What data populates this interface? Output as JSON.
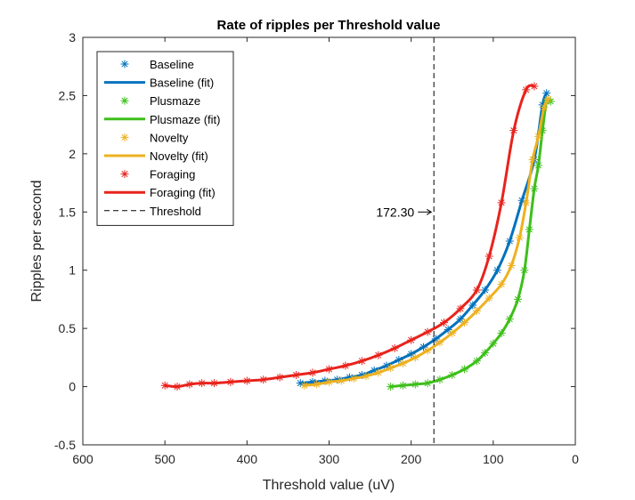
{
  "chart_data": {
    "type": "line",
    "title": "Rate of ripples per Threshold value",
    "xlabel": "Threshold value (uV)",
    "ylabel": "Ripples per second",
    "xlim": [
      0,
      600
    ],
    "x_reversed": true,
    "ylim": [
      -0.5,
      3
    ],
    "xticks": [
      "600",
      "500",
      "400",
      "300",
      "200",
      "100",
      "0"
    ],
    "xtick_values": [
      600,
      500,
      400,
      300,
      200,
      100,
      0
    ],
    "yticks": [
      "-0.5",
      "0",
      "0.5",
      "1",
      "1.5",
      "2",
      "2.5",
      "3"
    ],
    "ytick_values": [
      -0.5,
      0,
      0.5,
      1,
      1.5,
      2,
      2.5,
      3
    ],
    "grid": false,
    "legend_position": "top-left",
    "threshold": {
      "label": "Threshold",
      "value": 172.3,
      "annotation": "172.30"
    },
    "series": [
      {
        "name": "Baseline",
        "fit_name": "Baseline (fit)",
        "color": "#0072BD",
        "x": [
          335,
          320,
          305,
          290,
          275,
          260,
          245,
          230,
          215,
          200,
          185,
          170,
          155,
          140,
          125,
          110,
          95,
          80,
          65,
          50,
          40,
          35
        ],
        "y": [
          0.03,
          0.04,
          0.05,
          0.06,
          0.08,
          0.1,
          0.14,
          0.18,
          0.23,
          0.28,
          0.34,
          0.41,
          0.49,
          0.58,
          0.7,
          0.83,
          1.0,
          1.25,
          1.6,
          1.95,
          2.42,
          2.52
        ]
      },
      {
        "name": "Plusmaze",
        "fit_name": "Plusmaze (fit)",
        "color": "#3EBF1C",
        "x": [
          225,
          210,
          195,
          180,
          165,
          150,
          135,
          120,
          110,
          100,
          90,
          80,
          70,
          62,
          56,
          50,
          45,
          40,
          35,
          30
        ],
        "y": [
          0.0,
          0.01,
          0.02,
          0.03,
          0.06,
          0.1,
          0.15,
          0.22,
          0.29,
          0.37,
          0.46,
          0.58,
          0.75,
          1.0,
          1.35,
          1.7,
          1.9,
          2.2,
          2.45,
          2.45
        ]
      },
      {
        "name": "Novelty",
        "fit_name": "Novelty (fit)",
        "color": "#EDB120",
        "x": [
          330,
          315,
          300,
          285,
          270,
          255,
          240,
          225,
          210,
          195,
          180,
          165,
          150,
          135,
          120,
          105,
          90,
          78,
          68,
          60,
          52,
          45,
          38,
          33
        ],
        "y": [
          0.01,
          0.02,
          0.04,
          0.05,
          0.07,
          0.09,
          0.12,
          0.16,
          0.2,
          0.25,
          0.31,
          0.38,
          0.46,
          0.55,
          0.65,
          0.76,
          0.88,
          1.04,
          1.28,
          1.58,
          1.95,
          2.15,
          2.4,
          2.47
        ]
      },
      {
        "name": "Foraging",
        "fit_name": "Foraging (fit)",
        "color": "#E8231C",
        "x": [
          500,
          485,
          470,
          455,
          440,
          420,
          400,
          380,
          360,
          340,
          320,
          300,
          280,
          260,
          240,
          220,
          200,
          180,
          160,
          140,
          120,
          105,
          90,
          75,
          60,
          50
        ],
        "y": [
          0.01,
          0.0,
          0.02,
          0.03,
          0.03,
          0.04,
          0.05,
          0.06,
          0.08,
          0.1,
          0.12,
          0.15,
          0.18,
          0.22,
          0.27,
          0.33,
          0.4,
          0.47,
          0.55,
          0.67,
          0.83,
          1.12,
          1.58,
          2.2,
          2.55,
          2.58
        ]
      }
    ]
  }
}
